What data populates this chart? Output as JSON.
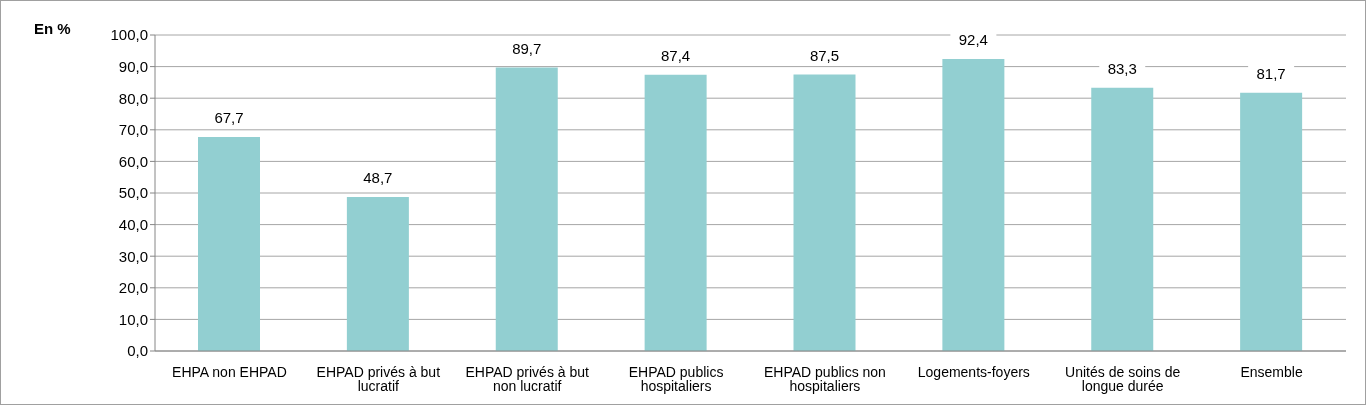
{
  "chart_data": {
    "type": "bar",
    "ylabel": "En %",
    "categories": [
      "EHPA non EHPAD",
      "EHPAD privés à but lucratif",
      "EHPAD privés à but non lucratif",
      "EHPAD publics hospitaliers",
      "EHPAD publics non hospitaliers",
      "Logements-foyers",
      "Unités de soins de longue durée",
      "Ensemble"
    ],
    "values": [
      67.7,
      48.7,
      89.7,
      87.4,
      87.5,
      92.4,
      83.3,
      81.7
    ],
    "value_labels": [
      "67,7",
      "48,7",
      "89,7",
      "87,4",
      "87,5",
      "92,4",
      "83,3",
      "81,7"
    ],
    "color": "#92cfd1",
    "ylim": [
      0,
      100
    ],
    "yticks": [
      {
        "value": 0,
        "label": "0,0"
      },
      {
        "value": 10,
        "label": "10,0"
      },
      {
        "value": 20,
        "label": "20,0"
      },
      {
        "value": 30,
        "label": "30,0"
      },
      {
        "value": 40,
        "label": "40,0"
      },
      {
        "value": 50,
        "label": "50,0"
      },
      {
        "value": 60,
        "label": "60,0"
      },
      {
        "value": 70,
        "label": "70,0"
      },
      {
        "value": 80,
        "label": "80,0"
      },
      {
        "value": 90,
        "label": "90,0"
      },
      {
        "value": 100,
        "label": "100,0"
      }
    ],
    "grid": "y"
  }
}
